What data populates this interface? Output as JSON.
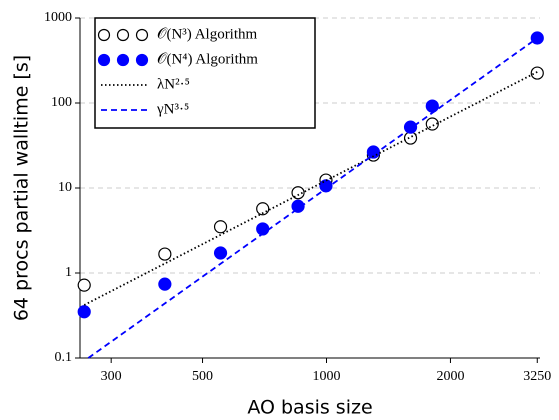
{
  "chart_data": {
    "type": "scatter",
    "x_label": "AO basis size",
    "y_label": "64 procs partial walltime [s]",
    "xscale": "log",
    "yscale": "log",
    "xlim": [
      252,
      3300
    ],
    "ylim": [
      0.1,
      1000
    ],
    "xticks": [
      300,
      500,
      1000,
      2000,
      3250
    ],
    "yticks": [
      0.1,
      1,
      10,
      100,
      1000
    ],
    "grid": true,
    "legend_position": "upper-left",
    "series": [
      {
        "name": "𝒪(N³) Algorithm",
        "style": "open-marker",
        "color": "#000000",
        "x": [
          258,
          405,
          553,
          700,
          853,
          997,
          1300,
          1600,
          1807,
          3250
        ],
        "values": [
          0.72,
          1.67,
          3.5,
          5.7,
          8.8,
          12.4,
          24.4,
          38.7,
          56.6,
          225
        ]
      },
      {
        "name": "𝒪(N⁴) Algorithm",
        "style": "filled-marker",
        "color": "#0000ff",
        "x": [
          258,
          405,
          553,
          700,
          853,
          997,
          1300,
          1600,
          1807,
          3250
        ],
        "values": [
          0.35,
          0.74,
          1.72,
          3.3,
          6.1,
          10.6,
          26.5,
          52,
          92,
          582
        ]
      },
      {
        "name": "λN²·⁵",
        "style": "dotted",
        "color": "#000000",
        "x": [
          258,
          3250
        ],
        "values": [
          0.42,
          232
        ]
      },
      {
        "name": "γN³·⁵",
        "style": "dashed",
        "color": "#0000ff",
        "x": [
          264,
          3250
        ],
        "values": [
          0.1,
          580
        ]
      }
    ]
  }
}
